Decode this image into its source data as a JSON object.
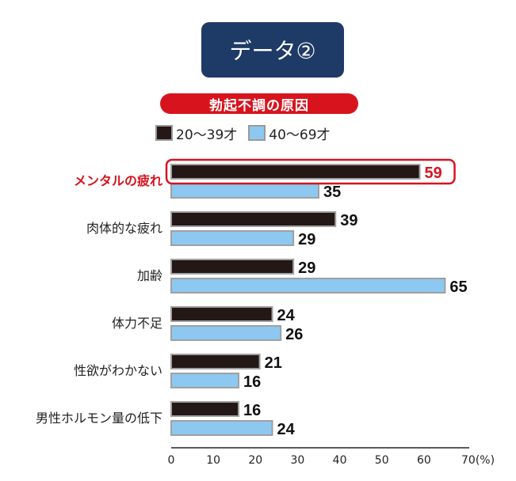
{
  "header": {
    "label": "データ②"
  },
  "chart_data": {
    "type": "bar",
    "orientation": "horizontal",
    "title": "勃起不調の原因",
    "categories": [
      "メンタルの疲れ",
      "肉体的な疲れ",
      "加齢",
      "体力不足",
      "性欲がわかない",
      "男性ホルモン量の低下"
    ],
    "series": [
      {
        "name": "20〜39才",
        "color": "#231815",
        "values": [
          59,
          39,
          29,
          24,
          21,
          16
        ]
      },
      {
        "name": "40〜69才",
        "color": "#8cc8f0",
        "values": [
          35,
          29,
          65,
          26,
          16,
          24
        ]
      }
    ],
    "xlim": [
      0,
      70
    ],
    "xticks": [
      0,
      10,
      20,
      30,
      40,
      50,
      60
    ],
    "xtick_last_label": "70(%)",
    "highlight_category": "メンタルの疲れ",
    "highlight_color": "#d7141e",
    "grid": false,
    "legend_position": "top"
  }
}
